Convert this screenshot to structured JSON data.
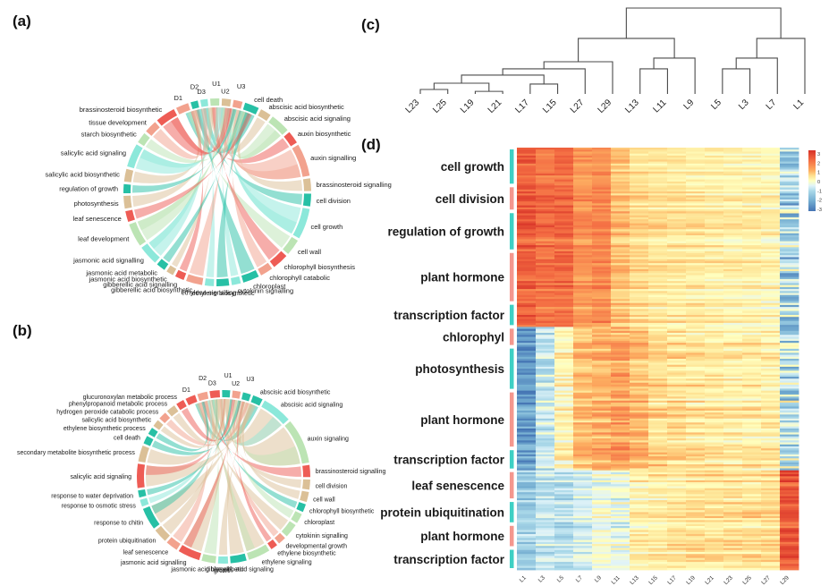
{
  "figure": {
    "panel_letters": {
      "a": "(a)",
      "b": "(b)",
      "c": "(c)",
      "d": "(d)"
    }
  },
  "palette": {
    "red": "#ee5c55",
    "salmon": "#f2a28e",
    "tan": "#dbc097",
    "lightgreen": "#bce4b4",
    "teal": "#27c0a5",
    "cyan": "#8ce8da",
    "strip_teal": "#3ed0c4",
    "strip_salmon": "#f4978e",
    "dendro_line": "#4a4a4a",
    "label_color": "#1a1a1a"
  },
  "chart_data": [
    {
      "id": "chord_a",
      "type": "chord",
      "panel": "a",
      "segments": [
        {
          "label": "D1",
          "color": "salmon",
          "size": 1.4,
          "top": true
        },
        {
          "label": "D2",
          "color": "teal",
          "size": 0.8,
          "top": true
        },
        {
          "label": "D3",
          "color": "cyan",
          "size": 0.8,
          "top": true
        },
        {
          "label": "U1",
          "color": "lightgreen",
          "size": 1.0,
          "top": true
        },
        {
          "label": "U2",
          "color": "tan",
          "size": 1.0,
          "top": true
        },
        {
          "label": "U3",
          "color": "salmon",
          "size": 1.0,
          "top": true
        },
        {
          "label": "cell death",
          "color": "teal",
          "size": 1.6
        },
        {
          "label": "abscisic acid biosynthetic",
          "color": "tan",
          "size": 1.2
        },
        {
          "label": "abscisic acid signaling",
          "color": "lightgreen",
          "size": 2.2
        },
        {
          "label": "auxin biosynthetic",
          "color": "red",
          "size": 1.4
        },
        {
          "label": "auxin signalling",
          "color": "salmon",
          "size": 3.6
        },
        {
          "label": "brassinosteroid signalling",
          "color": "tan",
          "size": 1.4
        },
        {
          "label": "cell division",
          "color": "teal",
          "size": 1.4
        },
        {
          "label": "cell growth",
          "color": "cyan",
          "size": 3.4
        },
        {
          "label": "cell wall",
          "color": "lightgreen",
          "size": 1.8
        },
        {
          "label": "chlorophyll biosynthesis",
          "color": "red",
          "size": 1.8
        },
        {
          "label": "chlorophyll catabolic",
          "color": "salmon",
          "size": 1.4
        },
        {
          "label": "chloroplast",
          "color": "teal",
          "size": 1.8
        },
        {
          "label": "cytokinin signalling",
          "color": "cyan",
          "size": 1.0
        },
        {
          "label": "ethylene biosynthetic",
          "color": "teal",
          "size": 1.4
        },
        {
          "label": "ethylene signalling",
          "color": "cyan",
          "size": 1.0
        },
        {
          "label": "gibberellic acid biosynthetic",
          "color": "salmon",
          "size": 1.8
        },
        {
          "label": "gibberellic acid signalling",
          "color": "red",
          "size": 1.0
        },
        {
          "label": "jasmonic acid biosynthetic",
          "color": "tan",
          "size": 0.8
        },
        {
          "label": "jasmonic acid metabolic",
          "color": "teal",
          "size": 1.0
        },
        {
          "label": "jasmonic acid signalling",
          "color": "cyan",
          "size": 2.2
        },
        {
          "label": "leaf development",
          "color": "lightgreen",
          "size": 2.6
        },
        {
          "label": "leaf senescence",
          "color": "red",
          "size": 1.2
        },
        {
          "label": "photosynthesis",
          "color": "tan",
          "size": 1.4
        },
        {
          "label": "regulation of growth",
          "color": "teal",
          "size": 1.0
        },
        {
          "label": "salicylic acid biosynthetic",
          "color": "tan",
          "size": 1.4
        },
        {
          "label": "salicylic acid signaling",
          "color": "cyan",
          "size": 2.6
        },
        {
          "label": "starch biosynthetic",
          "color": "lightgreen",
          "size": 1.2
        },
        {
          "label": "tissue development",
          "color": "salmon",
          "size": 1.4
        },
        {
          "label": "brassinosteroid biosynthetic",
          "color": "red",
          "size": 2.2
        }
      ]
    },
    {
      "id": "chord_b",
      "type": "chord",
      "panel": "b",
      "segments": [
        {
          "label": "D1",
          "color": "red",
          "size": 1.0,
          "top": true
        },
        {
          "label": "D2",
          "color": "salmon",
          "size": 1.0,
          "top": true
        },
        {
          "label": "D3",
          "color": "red",
          "size": 1.0,
          "top": true
        },
        {
          "label": "U1",
          "color": "teal",
          "size": 0.8,
          "top": true
        },
        {
          "label": "U2",
          "color": "salmon",
          "size": 0.8,
          "top": true
        },
        {
          "label": "U3",
          "color": "teal",
          "size": 0.8,
          "top": true
        },
        {
          "label": "abscisic acid biosynthetic",
          "color": "teal",
          "size": 1.0
        },
        {
          "label": "abscisic acid signaling",
          "color": "cyan",
          "size": 3.0,
          "ribbon": "tan"
        },
        {
          "label": "auxin signaling",
          "color": "lightgreen",
          "size": 4.5,
          "ribbon": "tan"
        },
        {
          "label": "brassinosteroid signalling",
          "color": "red",
          "size": 1.2
        },
        {
          "label": "cell division",
          "color": "tan",
          "size": 1.0
        },
        {
          "label": "cell wall",
          "color": "tan",
          "size": 1.0
        },
        {
          "label": "chlorophyll biosynthetic",
          "color": "teal",
          "size": 0.8
        },
        {
          "label": "chloroplast",
          "color": "lightgreen",
          "size": 1.0
        },
        {
          "label": "cytokinin signalling",
          "color": "lightgreen",
          "size": 1.4,
          "ribbon": "tan"
        },
        {
          "label": "developmental growth",
          "color": "salmon",
          "size": 0.8
        },
        {
          "label": "ethylene biosynthetic",
          "color": "red",
          "size": 0.7
        },
        {
          "label": "ethylene signaling",
          "color": "lightgreen",
          "size": 2.2,
          "ribbon": "tan"
        },
        {
          "label": "gibberellic acid signaling",
          "color": "teal",
          "size": 1.6,
          "ribbon": "tan"
        },
        {
          "label": "growth",
          "color": "cyan",
          "size": 1.0,
          "ribbon": "tan"
        },
        {
          "label": "jasmonic acid biosynthetic",
          "color": "lightgreen",
          "size": 1.4
        },
        {
          "label": "jasmonic acid signalling",
          "color": "red",
          "size": 2.2,
          "ribbon": "tan"
        },
        {
          "label": "leaf senescence",
          "color": "salmon",
          "size": 1.2
        },
        {
          "label": "protein ubiquitination",
          "color": "tan",
          "size": 1.4,
          "ribbon": "tan"
        },
        {
          "label": "response to chitin",
          "color": "teal",
          "size": 2.2,
          "ribbon": "tan"
        },
        {
          "label": "response to osmotic stress",
          "color": "cyan",
          "size": 0.7
        },
        {
          "label": "response to water deprivation",
          "color": "teal",
          "size": 0.7
        },
        {
          "label": "salicylic acid signaling",
          "color": "red",
          "size": 2.4,
          "ribbon": "tan"
        },
        {
          "label": "secondary metabolite biosynthetic process",
          "color": "tan",
          "size": 1.6,
          "ribbon": "tan"
        },
        {
          "label": "cell death",
          "color": "teal",
          "size": 0.8
        },
        {
          "label": "ethylene biosynthetic process",
          "color": "teal",
          "size": 0.7
        },
        {
          "label": "salicylic acid biosynthetic",
          "color": "tan",
          "size": 0.7
        },
        {
          "label": "hydrogen peroxide catabolic process",
          "color": "salmon",
          "size": 0.8
        },
        {
          "label": "phenylpropanoid metabolic process",
          "color": "tan",
          "size": 0.9
        },
        {
          "label": "glucuronoxylan metabolic process",
          "color": "red",
          "size": 0.8
        }
      ]
    },
    {
      "id": "dendro_c",
      "type": "dendrogram",
      "panel": "c",
      "leaf_order": [
        "L23",
        "L25",
        "L19",
        "L21",
        "L17",
        "L15",
        "L27",
        "L29",
        "L13",
        "L11",
        "L9",
        "L5",
        "L3",
        "L7",
        "L1"
      ],
      "tree": {
        "h": 1.0,
        "c": [
          {
            "h": 0.646,
            "c": [
              {
                "h": 0.375,
                "c": [
                  {
                    "h": 0.292,
                    "c": [
                      {
                        "h": 0.219,
                        "c": [
                          {
                            "h": 0.125,
                            "c": [
                              {
                                "h": 0.052,
                                "c": [
                                  {
                                    "leaf": "L23"
                                  },
                                  {
                                    "leaf": "L25"
                                  }
                                ]
                              },
                              {
                                "h": 0.03,
                                "c": [
                                  {
                                    "leaf": "L19"
                                  },
                                  {
                                    "leaf": "L21"
                                  }
                                ]
                              }
                            ]
                          },
                          {
                            "h": 0.115,
                            "c": [
                              {
                                "leaf": "L17"
                              },
                              {
                                "leaf": "L15"
                              }
                            ]
                          }
                        ]
                      },
                      {
                        "leaf": "L27"
                      }
                    ]
                  },
                  {
                    "leaf": "L29"
                  }
                ]
              },
              {
                "h": 0.417,
                "c": [
                  {
                    "h": 0.292,
                    "c": [
                      {
                        "leaf": "L13"
                      },
                      {
                        "leaf": "L11"
                      }
                    ]
                  },
                  {
                    "leaf": "L9"
                  }
                ]
              }
            ]
          },
          {
            "h": 0.646,
            "c": [
              {
                "h": 0.417,
                "c": [
                  {
                    "h": 0.292,
                    "c": [
                      {
                        "leaf": "L5"
                      },
                      {
                        "leaf": "L3"
                      }
                    ]
                  },
                  {
                    "leaf": "L7"
                  }
                ]
              },
              {
                "leaf": "L1"
              }
            ]
          }
        ]
      }
    },
    {
      "id": "heatmap_d",
      "type": "heatmap",
      "panel": "d",
      "columns": [
        "L1",
        "L3",
        "L5",
        "L7",
        "L9",
        "L11",
        "L13",
        "L15",
        "L17",
        "L19",
        "L21",
        "L23",
        "L25",
        "L27",
        "L29"
      ],
      "row_groups": [
        {
          "label": "cell growth",
          "strip": "strip_teal",
          "rows": 19,
          "block": "A"
        },
        {
          "label": "cell division",
          "strip": "strip_salmon",
          "rows": 13,
          "block": "A"
        },
        {
          "label": "regulation of growth",
          "strip": "strip_teal",
          "rows": 20,
          "block": "A"
        },
        {
          "label": "plant hormone",
          "strip": "strip_salmon",
          "rows": 26,
          "block": "A"
        },
        {
          "label": "transcription factor",
          "strip": "strip_teal",
          "rows": 12,
          "block": "A"
        },
        {
          "label": "chlorophyl",
          "strip": "strip_salmon",
          "rows": 10,
          "block": "B"
        },
        {
          "label": "photosynthesis",
          "strip": "strip_teal",
          "rows": 22,
          "block": "B"
        },
        {
          "label": "plant hormone",
          "strip": "strip_salmon",
          "rows": 29,
          "block": "B"
        },
        {
          "label": "transcription factor",
          "strip": "strip_teal",
          "rows": 11,
          "block": "B"
        },
        {
          "label": "leaf senescence",
          "strip": "strip_salmon",
          "rows": 15,
          "block": "C"
        },
        {
          "label": "protein ubiquitination",
          "strip": "strip_teal",
          "rows": 12,
          "block": "C"
        },
        {
          "label": "plant hormone",
          "strip": "strip_salmon",
          "rows": 12,
          "block": "C"
        },
        {
          "label": "transcription factor",
          "strip": "strip_teal",
          "rows": 11,
          "block": "C"
        }
      ],
      "blocks": {
        "A": {
          "mean": [
            2.2,
            1.9,
            2.0,
            1.35,
            1.5,
            0.75,
            0.45,
            0.35,
            0.3,
            0.25,
            0.2,
            0.18,
            0.15,
            0.1,
            -1.3
          ],
          "sigma": [
            0.35,
            0.35,
            0.35,
            0.3,
            0.3,
            0.25,
            0.2,
            0.2,
            0.2,
            0.2,
            0.2,
            0.2,
            0.2,
            0.25,
            1.3
          ]
        },
        "B": {
          "mean": [
            -2.3,
            -0.7,
            0.15,
            0.9,
            1.1,
            1.3,
            0.95,
            0.55,
            0.5,
            0.4,
            0.35,
            0.3,
            0.3,
            0.3,
            -0.9
          ],
          "sigma": [
            0.7,
            0.5,
            0.3,
            0.35,
            0.4,
            0.45,
            0.35,
            0.3,
            0.3,
            0.25,
            0.25,
            0.25,
            0.25,
            0.25,
            1.2
          ]
        },
        "C": {
          "mean": [
            -1.2,
            -0.85,
            -0.95,
            -0.55,
            -0.25,
            -0.35,
            0.2,
            0.3,
            0.35,
            0.4,
            0.4,
            0.45,
            0.45,
            0.5,
            2.3
          ],
          "sigma": [
            0.6,
            0.4,
            0.4,
            0.35,
            0.3,
            0.45,
            0.25,
            0.25,
            0.25,
            0.25,
            0.25,
            0.25,
            0.25,
            0.25,
            0.5
          ]
        }
      },
      "colormap": {
        "values": [
          -3,
          -2,
          -1,
          -0.5,
          0,
          0.5,
          1,
          2,
          3
        ],
        "colors": [
          "#4575b4",
          "#74add1",
          "#abd9e9",
          "#e0f3f8",
          "#ffffbf",
          "#fee090",
          "#fdae61",
          "#f46d43",
          "#d73027"
        ]
      },
      "colorbar_ticks": [
        "3",
        "2",
        "1",
        "0",
        "-1",
        "-2",
        "-3"
      ]
    }
  ]
}
